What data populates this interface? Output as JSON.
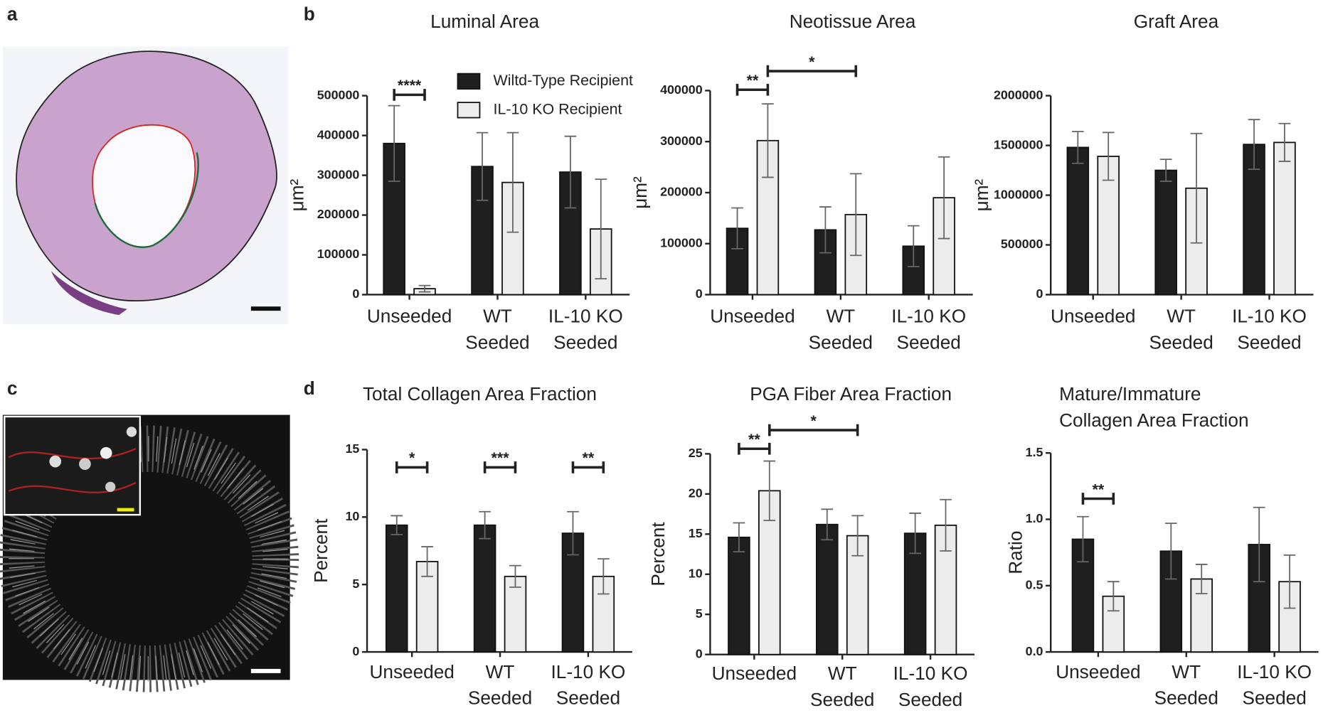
{
  "panels": [
    "a",
    "b",
    "c",
    "d"
  ],
  "chart_data": [
    {
      "type": "bar",
      "title": [
        "Luminal Area"
      ],
      "ylabel": "μm²",
      "categories": [
        [
          "Unseeded"
        ],
        [
          "WT",
          "Seeded"
        ],
        [
          "IL-10 KO",
          "Seeded"
        ]
      ],
      "series": [
        {
          "name": "Wiltd-Type Recipient",
          "color": "#1f1f1f",
          "values": [
            380000,
            322000,
            308000
          ],
          "errors": [
            95000,
            85000,
            90000
          ]
        },
        {
          "name": "IL-10 KO Recipient",
          "color": "#ececec",
          "values": [
            15000,
            282000,
            165000
          ],
          "errors": [
            8000,
            125000,
            125000
          ]
        }
      ],
      "ylim": [
        0,
        500000
      ],
      "yticks": [
        0,
        100000,
        200000,
        300000,
        400000,
        500000
      ],
      "legend": "top-right",
      "annotations": [
        {
          "text": "****"
        }
      ]
    },
    {
      "type": "bar",
      "title": [
        "Neotissue Area"
      ],
      "ylabel": "μm²",
      "categories": [
        [
          "Unseeded"
        ],
        [
          "WT",
          "Seeded"
        ],
        [
          "IL-10 KO",
          "Seeded"
        ]
      ],
      "series": [
        {
          "color": "#1f1f1f",
          "values": [
            130000,
            127000,
            95000
          ],
          "errors": [
            40000,
            45000,
            40000
          ]
        },
        {
          "color": "#ececec",
          "values": [
            302000,
            157000,
            190000
          ],
          "errors": [
            72000,
            80000,
            80000
          ]
        }
      ],
      "ylim": [
        0,
        400000
      ],
      "yticks": [
        0,
        100000,
        200000,
        300000,
        400000
      ],
      "annotations": [
        {
          "text": "**"
        },
        {
          "text": "*"
        }
      ]
    },
    {
      "type": "bar",
      "title": [
        "Graft Area"
      ],
      "ylabel": "μm²",
      "categories": [
        [
          "Unseeded"
        ],
        [
          "WT",
          "Seeded"
        ],
        [
          "IL-10 KO",
          "Seeded"
        ]
      ],
      "series": [
        {
          "color": "#1f1f1f",
          "values": [
            1480000,
            1250000,
            1510000
          ],
          "errors": [
            160000,
            110000,
            250000
          ]
        },
        {
          "color": "#ececec",
          "values": [
            1390000,
            1070000,
            1530000
          ],
          "errors": [
            240000,
            550000,
            190000
          ]
        }
      ],
      "ylim": [
        0,
        2000000
      ],
      "yticks": [
        0,
        500000,
        1000000,
        1500000,
        2000000
      ],
      "annotations": []
    },
    {
      "type": "bar",
      "title": [
        "Total Collagen Area Fraction"
      ],
      "ylabel": "Percent",
      "categories": [
        [
          "Unseeded"
        ],
        [
          "WT",
          "Seeded"
        ],
        [
          "IL-10 KO",
          "Seeded"
        ]
      ],
      "series": [
        {
          "color": "#1f1f1f",
          "values": [
            9.4,
            9.4,
            8.8
          ],
          "errors": [
            0.7,
            1.0,
            1.6
          ]
        },
        {
          "color": "#ececec",
          "values": [
            6.7,
            5.6,
            5.6
          ],
          "errors": [
            1.1,
            0.8,
            1.3
          ]
        }
      ],
      "ylim": [
        0,
        15
      ],
      "yticks": [
        0,
        5,
        10,
        15
      ],
      "annotations": [
        {
          "text": "*"
        },
        {
          "text": "***"
        },
        {
          "text": "**"
        }
      ]
    },
    {
      "type": "bar",
      "title": [
        "PGA Fiber Area Fraction"
      ],
      "ylabel": "Percent",
      "categories": [
        [
          "Unseeded"
        ],
        [
          "WT",
          "Seeded"
        ],
        [
          "IL-10 KO",
          "Seeded"
        ]
      ],
      "series": [
        {
          "color": "#1f1f1f",
          "values": [
            14.6,
            16.2,
            15.1
          ],
          "errors": [
            1.8,
            1.9,
            2.5
          ]
        },
        {
          "color": "#ececec",
          "values": [
            20.4,
            14.8,
            16.1
          ],
          "errors": [
            3.7,
            2.5,
            3.2
          ]
        }
      ],
      "ylim": [
        0,
        25
      ],
      "yticks": [
        0,
        5,
        10,
        15,
        20,
        25
      ],
      "annotations": [
        {
          "text": "**"
        },
        {
          "text": "*"
        }
      ]
    },
    {
      "type": "bar",
      "title": [
        "Mature/Immature",
        "Collagen Area Fraction"
      ],
      "ylabel": "Ratio",
      "categories": [
        [
          "Unseeded"
        ],
        [
          "WT",
          "Seeded"
        ],
        [
          "IL-10 KO",
          "Seeded"
        ]
      ],
      "series": [
        {
          "color": "#1f1f1f",
          "values": [
            0.85,
            0.76,
            0.81
          ],
          "errors": [
            0.17,
            0.21,
            0.28
          ]
        },
        {
          "color": "#ececec",
          "values": [
            0.42,
            0.55,
            0.53
          ],
          "errors": [
            0.11,
            0.11,
            0.2
          ]
        }
      ],
      "ylim": [
        0,
        1.5
      ],
      "yticks": [
        {
          "value": 0,
          "label": "0.0"
        },
        0.5,
        {
          "value": 1,
          "label": "1.0"
        },
        1.5
      ],
      "annotations": [
        {
          "text": "**"
        }
      ]
    }
  ]
}
